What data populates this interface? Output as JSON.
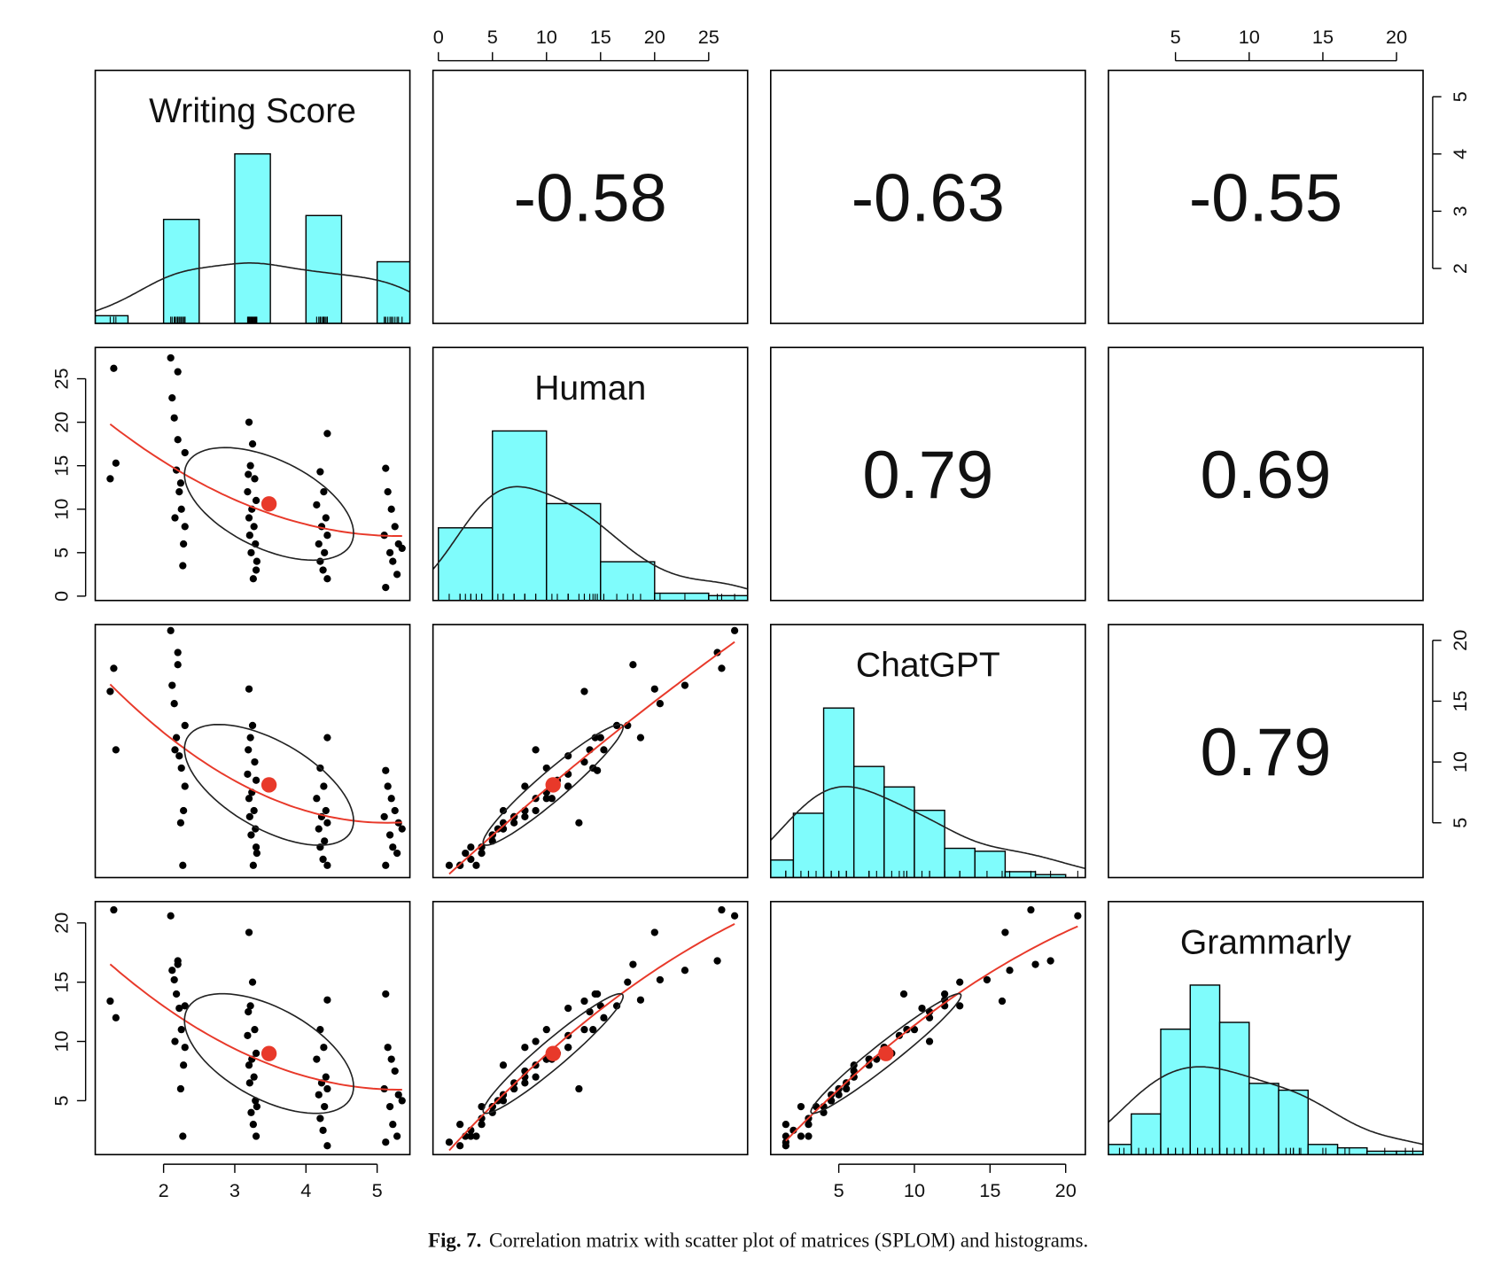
{
  "chart_data": {
    "type": "splom",
    "hist_color": "#7ffcfc",
    "fit_color": "#e8392a",
    "variables": [
      {
        "name": "Writing Score",
        "lim": [
          1.04,
          5.46
        ],
        "ticks": [
          2,
          3,
          4,
          5
        ],
        "bins": [
          1,
          1.5,
          2,
          2.5,
          3,
          3.5,
          4,
          4.5,
          5,
          5.5
        ],
        "counts": [
          2,
          0,
          27,
          0,
          44,
          0,
          28,
          0,
          16
        ]
      },
      {
        "name": "Human",
        "lim": [
          -0.5,
          28.6
        ],
        "ticks": [
          0,
          5,
          10,
          15,
          20,
          25
        ],
        "bins": [
          0,
          5,
          10,
          15,
          20,
          25,
          30
        ],
        "counts": [
          30,
          70,
          40,
          16,
          3,
          2
        ]
      },
      {
        "name": "ChatGPT",
        "lim": [
          0.5,
          21.3
        ],
        "ticks": [
          5,
          10,
          15,
          20
        ],
        "bins": [
          0,
          2,
          4,
          6,
          8,
          10,
          12,
          14,
          16,
          18,
          20
        ],
        "counts": [
          6,
          22,
          58,
          38,
          31,
          23,
          10,
          9,
          2,
          1
        ]
      },
      {
        "name": "Grammarly",
        "lim": [
          0.45,
          21.8
        ],
        "ticks": [
          5,
          10,
          15,
          20
        ],
        "bins": [
          0,
          2,
          4,
          6,
          8,
          10,
          12,
          14,
          16,
          18,
          20,
          22
        ],
        "counts": [
          3,
          12,
          37,
          50,
          39,
          21,
          19,
          3,
          2,
          1,
          1
        ]
      }
    ],
    "correlations": [
      -0.58,
      -0.63,
      -0.55,
      0.79,
      0.69,
      0.79
    ],
    "observations": [
      [
        1.25,
        13.5,
        15.8,
        13.4
      ],
      [
        1.3,
        26.2,
        17.7,
        21.1
      ],
      [
        1.33,
        15.3,
        11.0,
        12.0
      ],
      [
        2.1,
        27.4,
        20.8,
        20.6
      ],
      [
        2.12,
        22.8,
        16.3,
        16.0
      ],
      [
        2.15,
        20.5,
        14.8,
        15.2
      ],
      [
        2.2,
        18.0,
        18.0,
        16.5
      ],
      [
        2.18,
        14.5,
        12.0,
        14.0
      ],
      [
        2.22,
        12.0,
        10.5,
        12.8
      ],
      [
        2.25,
        10.0,
        9.5,
        11.0
      ],
      [
        2.3,
        8.0,
        8.0,
        9.5
      ],
      [
        2.28,
        6.0,
        6.0,
        8.0
      ],
      [
        2.2,
        25.8,
        19.0,
        16.8
      ],
      [
        2.3,
        16.5,
        13.0,
        13.0
      ],
      [
        2.27,
        3.5,
        1.5,
        2.0
      ],
      [
        2.16,
        9.0,
        11.0,
        10.0
      ],
      [
        2.24,
        13.0,
        5.0,
        6.0
      ],
      [
        3.2,
        20.0,
        16.0,
        19.2
      ],
      [
        3.25,
        17.5,
        13.0,
        15.0
      ],
      [
        3.22,
        15.0,
        12.0,
        13.0
      ],
      [
        3.28,
        13.5,
        10.0,
        11.0
      ],
      [
        3.18,
        12.0,
        9.0,
        10.5
      ],
      [
        3.3,
        11.0,
        8.5,
        9.0
      ],
      [
        3.24,
        10.0,
        7.5,
        8.5
      ],
      [
        3.2,
        9.0,
        7.0,
        8.0
      ],
      [
        3.27,
        8.0,
        6.0,
        7.0
      ],
      [
        3.21,
        7.0,
        5.5,
        6.5
      ],
      [
        3.29,
        6.0,
        4.5,
        5.0
      ],
      [
        3.23,
        5.0,
        4.0,
        4.0
      ],
      [
        3.3,
        3.0,
        3.0,
        2.0
      ],
      [
        3.26,
        2.0,
        1.5,
        3.0
      ],
      [
        3.19,
        14.0,
        11.0,
        12.5
      ],
      [
        3.31,
        4.0,
        2.5,
        4.5
      ],
      [
        4.3,
        18.7,
        12.0,
        13.5
      ],
      [
        4.2,
        14.3,
        9.5,
        11.0
      ],
      [
        4.25,
        12.0,
        8.0,
        9.5
      ],
      [
        4.15,
        10.5,
        7.0,
        8.5
      ],
      [
        4.28,
        9.0,
        6.0,
        7.0
      ],
      [
        4.22,
        8.0,
        5.5,
        6.5
      ],
      [
        4.3,
        7.0,
        5.0,
        6.0
      ],
      [
        4.18,
        6.0,
        4.5,
        5.5
      ],
      [
        4.26,
        5.0,
        3.5,
        4.5
      ],
      [
        4.2,
        4.0,
        3.0,
        3.5
      ],
      [
        4.24,
        3.0,
        2.0,
        2.5
      ],
      [
        4.3,
        2.0,
        1.5,
        1.2
      ],
      [
        5.12,
        14.7,
        9.3,
        14.0
      ],
      [
        5.15,
        12.0,
        8.0,
        9.5
      ],
      [
        5.2,
        10.0,
        7.0,
        8.5
      ],
      [
        5.25,
        8.0,
        6.0,
        7.5
      ],
      [
        5.1,
        7.0,
        5.5,
        6.0
      ],
      [
        5.3,
        6.0,
        5.0,
        5.5
      ],
      [
        5.18,
        5.0,
        4.0,
        4.5
      ],
      [
        5.22,
        4.0,
        3.0,
        3.0
      ],
      [
        5.28,
        2.5,
        2.5,
        2.0
      ],
      [
        5.12,
        1.0,
        1.5,
        1.5
      ],
      [
        5.35,
        5.5,
        4.5,
        5.0
      ]
    ]
  },
  "caption": {
    "label": "Fig. 7.",
    "text": "Correlation matrix with scatter plot of matrices (SPLOM) and histograms."
  }
}
